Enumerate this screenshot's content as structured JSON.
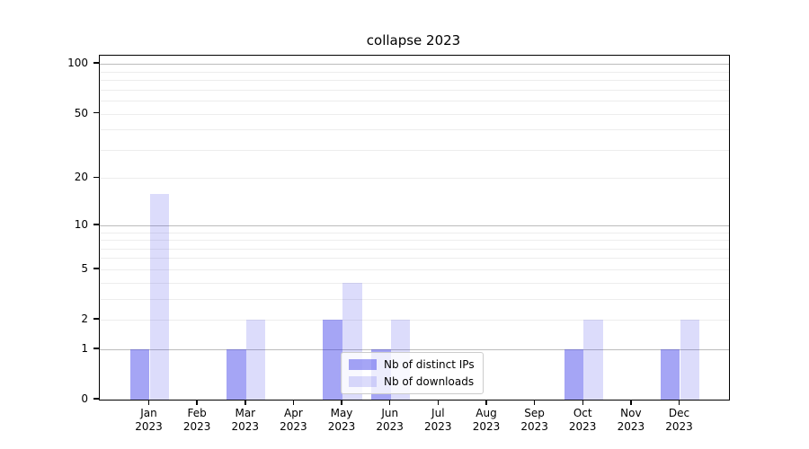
{
  "title": "collapse 2023",
  "chart_data": {
    "type": "bar",
    "title": "collapse 2023",
    "months": [
      "Jan",
      "Feb",
      "Mar",
      "Apr",
      "May",
      "Jun",
      "Jul",
      "Aug",
      "Sep",
      "Oct",
      "Nov",
      "Dec"
    ],
    "year_label": "2023",
    "series": [
      {
        "name": "Nb of distinct IPs",
        "color": "rgba(40,40,230,0.42)",
        "values": [
          1,
          0,
          1,
          0,
          2,
          1,
          0,
          0,
          0,
          1,
          0,
          1
        ]
      },
      {
        "name": "Nb of downloads",
        "color": "rgba(40,40,230,0.16)",
        "values": [
          16,
          0,
          2,
          0,
          4,
          2,
          0,
          0,
          0,
          2,
          0,
          2
        ]
      }
    ],
    "ytick_labels": [
      0,
      1,
      2,
      5,
      10,
      20,
      50,
      100
    ],
    "yaxis_scale": "symlog (log10 of 1+value)",
    "ylim": [
      0,
      112
    ],
    "grid": "horizontal major+minor",
    "legend_position": "lower center",
    "colors": {
      "distinct_ips_hex": "#a5a5f5",
      "downloads_hex": "#dddDfb",
      "major_grid": "#bcbcbc",
      "minor_grid": "#ededed"
    }
  }
}
